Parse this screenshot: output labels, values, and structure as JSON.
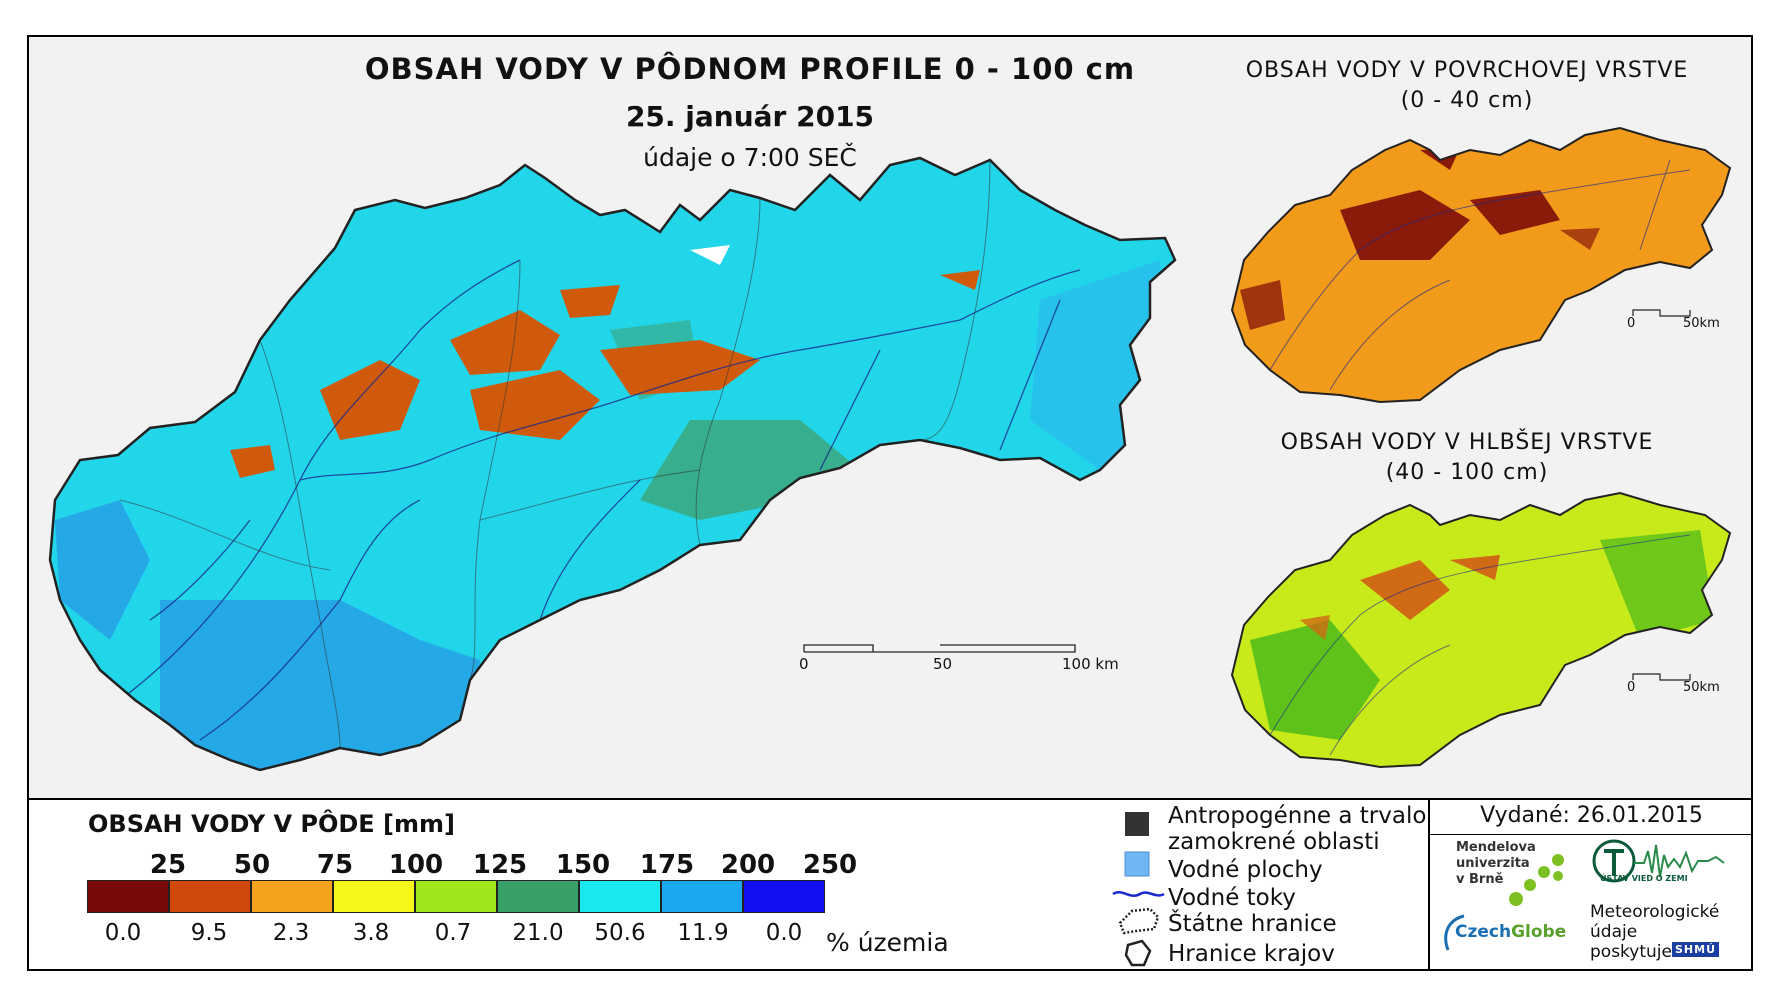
{
  "titles": {
    "main": "OBSAH VODY V PÔDNOM PROFILE 0 - 100 cm",
    "date": "25. január 2015",
    "time": "údaje o 7:00 SEČ",
    "surface_line1": "OBSAH VODY V POVRCHOVEJ VRSTVE",
    "surface_line2": "(0 - 40 cm)",
    "deep_line1": "OBSAH VODY V HLBŠEJ VRSTVE",
    "deep_line2": "(40 - 100 cm)"
  },
  "scalebars": {
    "main": [
      "0",
      "50",
      "100 km"
    ],
    "small_top": [
      "0",
      "50km"
    ],
    "small_bottom": [
      "0",
      "50km"
    ]
  },
  "legend": {
    "title": "OBSAH VODY V PÔDE [mm]",
    "thresholds": [
      "25",
      "50",
      "75",
      "100",
      "125",
      "150",
      "175",
      "200",
      "250"
    ],
    "colors": [
      "#7a0a0a",
      "#d0480a",
      "#f5a21c",
      "#f6f61a",
      "#9fe61a",
      "#3aa06a",
      "#1ae8f0",
      "#1aa8f0",
      "#1010f0"
    ],
    "percentages": [
      "0.0",
      "9.5",
      "2.3",
      "3.8",
      "0.7",
      "21.0",
      "50.6",
      "11.9",
      "0.0"
    ],
    "percent_label": "% územia"
  },
  "symbols": {
    "anthropogenic_line1": "Antropogénne a trvalo",
    "anthropogenic_line2": "zamokrené oblasti",
    "water_bodies": "Vodné plochy",
    "rivers": "Vodné toky",
    "state_border": "Štátne hranice",
    "region_border": "Hranice krajov"
  },
  "credits": {
    "issued": "Vydané: 26.01.2015",
    "mendel_line1": "Mendelova",
    "mendel_line2": "univerzita",
    "mendel_line3": "v Brně",
    "czech": "Czech",
    "globe": "Globe",
    "uvz": "ÚSTAV VIED O ZEMI",
    "meteo_line1": "Meteorologické",
    "meteo_line2": "údaje",
    "meteo_line3": "poskytuje:",
    "shmu": "SHMÚ"
  },
  "map_colors": {
    "main_base": "#22d6ea",
    "main_south": "#25a9e6",
    "main_orange": "#cf5a0c",
    "main_green": "#3fa06e",
    "surface_base": "#f29a1a",
    "surface_dark": "#8a1a0a",
    "deep_base": "#c9ea1a",
    "deep_green": "#5fc21a",
    "deep_orange": "#d06a14",
    "river": "#1a2a8a",
    "border": "#222222"
  }
}
